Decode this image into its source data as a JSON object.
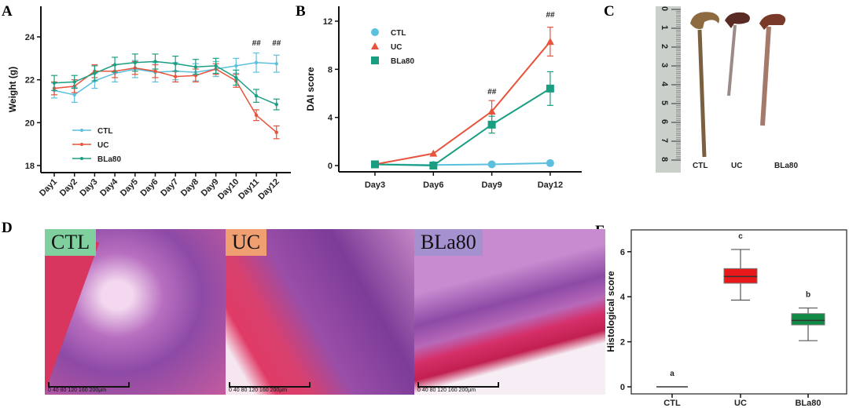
{
  "panels": {
    "a": "A",
    "b": "B",
    "c": "C",
    "d": "D",
    "e": "E"
  },
  "colors": {
    "CTL": "#5bc0de",
    "UC": "#e8533c",
    "BLa80": "#1a9e82"
  },
  "chart_data": [
    {
      "type": "line",
      "id": "A",
      "ylabel": "Weight (g)",
      "ylim": [
        18,
        25
      ],
      "yticks": [
        18,
        20,
        22,
        24
      ],
      "categories": [
        "Day1",
        "Day2",
        "Day3",
        "Day4",
        "Day5",
        "Day6",
        "Day7",
        "Day8",
        "Day9",
        "Day10",
        "Day11",
        "Day12"
      ],
      "series": [
        {
          "name": "CTL",
          "values": [
            21.5,
            21.3,
            21.95,
            22.3,
            22.5,
            22.35,
            22.4,
            22.35,
            22.5,
            22.65,
            22.8,
            22.75
          ],
          "err": [
            0.35,
            0.35,
            0.35,
            0.4,
            0.4,
            0.45,
            0.4,
            0.4,
            0.35,
            0.35,
            0.45,
            0.4
          ]
        },
        {
          "name": "UC",
          "values": [
            21.6,
            21.7,
            22.4,
            22.4,
            22.55,
            22.4,
            22.15,
            22.2,
            22.5,
            21.95,
            20.35,
            19.55
          ],
          "err": [
            0.3,
            0.3,
            0.3,
            0.3,
            0.3,
            0.3,
            0.25,
            0.3,
            0.25,
            0.3,
            0.25,
            0.3
          ]
        },
        {
          "name": "BLa80",
          "values": [
            21.85,
            21.9,
            22.3,
            22.7,
            22.8,
            22.85,
            22.75,
            22.6,
            22.65,
            22.1,
            21.25,
            20.85
          ],
          "err": [
            0.35,
            0.3,
            0.35,
            0.35,
            0.4,
            0.35,
            0.35,
            0.35,
            0.35,
            0.35,
            0.3,
            0.25
          ]
        }
      ],
      "annotations": [
        {
          "category": "Day11",
          "text": "##"
        },
        {
          "category": "Day12",
          "text": "##"
        }
      ],
      "legend": "bottom-left"
    },
    {
      "type": "line",
      "id": "B",
      "ylabel": "DAI score",
      "ylim": [
        0,
        12
      ],
      "yticks": [
        0,
        4,
        8,
        12
      ],
      "categories": [
        "Day3",
        "Day6",
        "Day9",
        "Day12"
      ],
      "series": [
        {
          "name": "CTL",
          "marker": "circle",
          "values": [
            0.1,
            0.05,
            0.1,
            0.2
          ],
          "err": [
            0,
            0,
            0,
            0
          ]
        },
        {
          "name": "UC",
          "marker": "triangle",
          "values": [
            0.1,
            1.0,
            4.5,
            10.3
          ],
          "err": [
            0,
            0,
            0.9,
            1.2
          ]
        },
        {
          "name": "BLa80",
          "marker": "square",
          "values": [
            0.1,
            0.0,
            3.4,
            6.4
          ],
          "err": [
            0,
            0,
            0.7,
            1.4
          ]
        }
      ],
      "annotations": [
        {
          "category": "Day9",
          "text": "##"
        },
        {
          "category": "Day12",
          "text": "##"
        }
      ],
      "legend": "top-left"
    },
    {
      "type": "box",
      "id": "E",
      "ylabel": "Histological score",
      "ylim": [
        0,
        7
      ],
      "yticks": [
        0,
        2,
        4,
        6
      ],
      "categories": [
        "CTL",
        "UC",
        "BLa80"
      ],
      "boxes": [
        {
          "min": 0,
          "q1": 0,
          "median": 0,
          "q3": 0,
          "max": 0,
          "letter": "a",
          "color": "#333"
        },
        {
          "min": 3.85,
          "q1": 4.6,
          "median": 4.9,
          "q3": 5.25,
          "max": 6.1,
          "letter": "c",
          "color": "#e8191b"
        },
        {
          "min": 2.05,
          "q1": 2.75,
          "median": 2.95,
          "q3": 3.25,
          "max": 3.5,
          "letter": "b",
          "color": "#108a45"
        }
      ]
    }
  ],
  "photo": {
    "labels": [
      "CTL",
      "UC",
      "BLa80"
    ],
    "ruler": [
      "0",
      "1",
      "2",
      "3",
      "4",
      "5",
      "6",
      "7",
      "8"
    ]
  },
  "histology": [
    {
      "label": "CTL",
      "scale": "0  40  80  120  160  200µm"
    },
    {
      "label": "UC",
      "scale": "0  40  80  120  160  200µm"
    },
    {
      "label": "BLa80",
      "scale": "0  40  80  120  160  200µm"
    }
  ]
}
